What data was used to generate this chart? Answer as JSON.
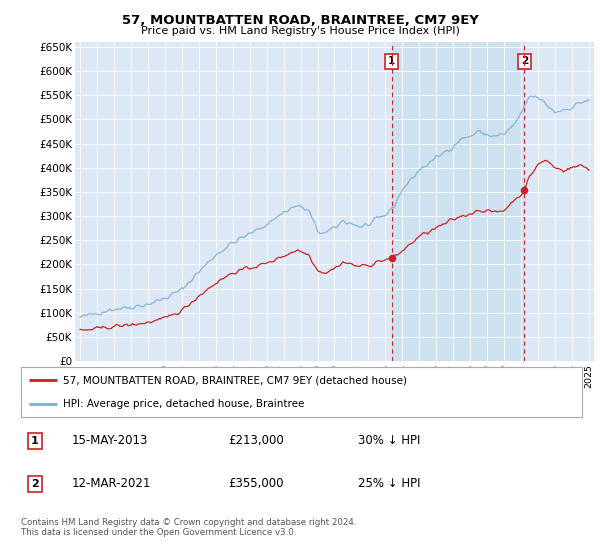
{
  "title": "57, MOUNTBATTEN ROAD, BRAINTREE, CM7 9EY",
  "subtitle": "Price paid vs. HM Land Registry's House Price Index (HPI)",
  "hpi_label": "HPI: Average price, detached house, Braintree",
  "property_label": "57, MOUNTBATTEN ROAD, BRAINTREE, CM7 9EY (detached house)",
  "sale1_date": "15-MAY-2013",
  "sale1_price": 213000,
  "sale1_pct": "30% ↓ HPI",
  "sale1_year": 2013.37,
  "sale2_date": "12-MAR-2021",
  "sale2_price": 355000,
  "sale2_pct": "25% ↓ HPI",
  "sale2_year": 2021.2,
  "ylim": [
    0,
    660000
  ],
  "yticks": [
    0,
    50000,
    100000,
    150000,
    200000,
    250000,
    300000,
    350000,
    400000,
    450000,
    500000,
    550000,
    600000,
    650000
  ],
  "footer": "Contains HM Land Registry data © Crown copyright and database right 2024.\nThis data is licensed under the Open Government Licence v3.0.",
  "hpi_color": "#7bafd4",
  "property_color": "#cc2222",
  "background_color": "#ffffff",
  "plot_bg_color": "#dce8f5",
  "shade_color": "#c8dff0"
}
